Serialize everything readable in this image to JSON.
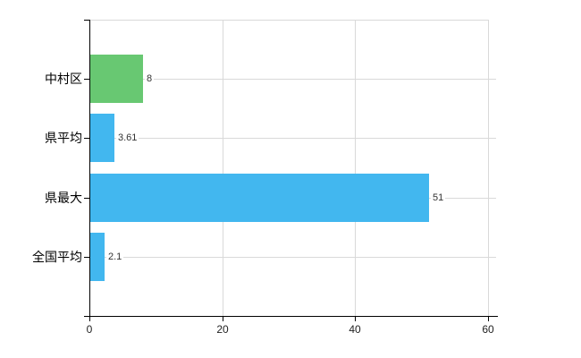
{
  "chart_data": {
    "type": "bar",
    "orientation": "horizontal",
    "title": "",
    "xlabel": "",
    "ylabel": "",
    "categories": [
      "中村区",
      "県平均",
      "県最大",
      "全国平均"
    ],
    "values": [
      8,
      3.61,
      51,
      2.1
    ],
    "value_labels": [
      "8",
      "3.61",
      "51",
      "2.1"
    ],
    "bar_colors": [
      "#68c872",
      "#42b7ef",
      "#42b7ef",
      "#42b7ef"
    ],
    "xlim": [
      0,
      60
    ],
    "x_ticks": [
      0,
      20,
      40,
      60
    ],
    "x_tick_labels": [
      "0",
      "20",
      "40",
      "60"
    ],
    "grid": true,
    "legend": false,
    "colors": {
      "background": "#ffffff",
      "gridline": "#d9d9d9",
      "axis": "#000000",
      "value_label_text": "#333333",
      "category_label_text": "#000000",
      "tick_label_text": "#222222"
    }
  }
}
